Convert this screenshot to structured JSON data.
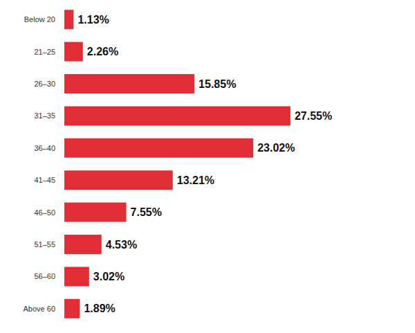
{
  "chart_data": {
    "type": "bar",
    "orientation": "horizontal",
    "categories": [
      "Below 20",
      "21–25",
      "26–30",
      "31–35",
      "36–40",
      "41–45",
      "46–50",
      "51–55",
      "56–60",
      "Above 60"
    ],
    "values": [
      1.13,
      2.26,
      15.85,
      27.55,
      23.02,
      13.21,
      7.55,
      4.53,
      3.02,
      1.89
    ],
    "value_labels": [
      "1.13%",
      "2.26%",
      "15.85%",
      "27.55%",
      "23.02%",
      "13.21%",
      "7.55%",
      "4.53%",
      "3.02%",
      "1.89%"
    ],
    "color": "#e32d36",
    "data_labels": true,
    "tick_labels": "y",
    "grid": false
  }
}
